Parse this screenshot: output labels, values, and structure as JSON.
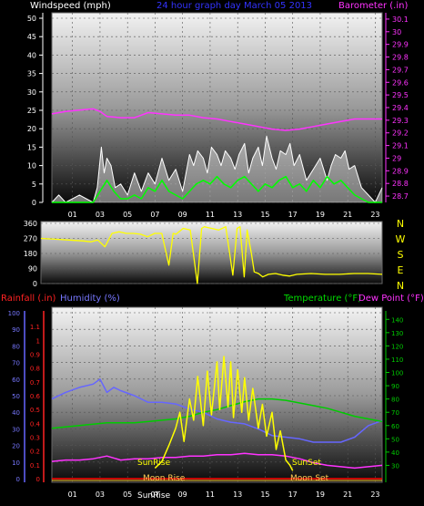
{
  "header": {
    "title": "24 hour graph day   March 05 2013",
    "left_label": "Windspeed (mph)",
    "right_label": "Barometer (.in)"
  },
  "labels": {
    "rainfall": "Rainfall (.in)",
    "humidity": "Humidity (%)",
    "temperature": "Temperature (°F)",
    "dew_point": "Dew Point (°F)",
    "sunrise": "SunRise",
    "sunset": "SunSet",
    "moonrise": "Moon Rise",
    "moonset": "Moon Set",
    "sunrise_axis": "SunRise"
  },
  "hour_ticks": [
    "01",
    "03",
    "05",
    "07",
    "09",
    "11",
    "13",
    "15",
    "17",
    "19",
    "21",
    "23"
  ],
  "direction_labels": [
    "N",
    "W",
    "S",
    "E",
    "N"
  ],
  "colors": {
    "windspeed": "#ffffff",
    "wind_avg": "#00ff00",
    "barometer": "#ff33ff",
    "direction": "#ffff00",
    "rainfall": "#ff0000",
    "humidity": "#6666ff",
    "temperature": "#00cc00",
    "dew_point": "#ff33ff",
    "solar": "#ffff00"
  },
  "chart_data": [
    {
      "type": "line",
      "panel": "wind-barometer",
      "ylabel": "Windspeed (mph)",
      "ylim": [
        0,
        50
      ],
      "left_ticks": [
        "0",
        "5",
        "10",
        "15",
        "20",
        "25",
        "30",
        "35",
        "40",
        "45",
        "50"
      ],
      "y2label": "Barometer (.in)",
      "y2lim": [
        28.65,
        30.15
      ],
      "right_ticks": [
        "28.7",
        "28.8",
        "28.9",
        "29",
        "29.1",
        "29.2",
        "29.3",
        "29.4",
        "29.5",
        "29.6",
        "29.7",
        "29.8",
        "29.9",
        "30",
        "30.1"
      ],
      "series": [
        {
          "name": "Barometer",
          "axis": "right",
          "x": [
            0,
            1,
            2,
            3,
            3.5,
            4,
            5,
            6,
            6.5,
            7,
            8,
            9,
            10,
            11,
            12,
            13,
            14,
            15,
            16,
            17,
            18,
            19,
            20,
            21,
            22,
            23,
            24
          ],
          "y": [
            29.35,
            29.37,
            29.38,
            29.39,
            29.37,
            29.33,
            29.32,
            29.32,
            29.34,
            29.36,
            29.35,
            29.34,
            29.34,
            29.32,
            29.31,
            29.29,
            29.27,
            29.25,
            29.23,
            29.22,
            29.23,
            29.25,
            29.27,
            29.29,
            29.31,
            29.31,
            29.31
          ]
        },
        {
          "name": "Wind Gust",
          "axis": "left",
          "x": [
            0,
            0.5,
            1,
            1.5,
            2,
            2.5,
            3,
            3.3,
            3.6,
            3.8,
            4,
            4.3,
            4.6,
            5,
            5.5,
            6,
            6.5,
            7,
            7.5,
            8,
            8.5,
            9,
            9.5,
            10,
            10.3,
            10.6,
            11,
            11.3,
            11.6,
            12,
            12.3,
            12.6,
            13,
            13.3,
            13.6,
            14,
            14.3,
            14.6,
            15,
            15.3,
            15.6,
            16,
            16.3,
            16.6,
            17,
            17.3,
            17.6,
            18,
            18.5,
            19,
            19.5,
            20,
            20.3,
            20.6,
            21,
            21.3,
            21.6,
            22,
            22.5,
            23,
            23.5,
            24
          ],
          "y": [
            0,
            2,
            0,
            1,
            2,
            1,
            0,
            4,
            15,
            8,
            12,
            10,
            4,
            5,
            2,
            8,
            3,
            8,
            5,
            12,
            6,
            9,
            3,
            13,
            10,
            14,
            12,
            8,
            15,
            13,
            10,
            14,
            12,
            9,
            13,
            16,
            8,
            12,
            15,
            10,
            18,
            12,
            9,
            14,
            13,
            16,
            10,
            13,
            6,
            9,
            12,
            6,
            10,
            13,
            12,
            14,
            9,
            10,
            4,
            2,
            0,
            4
          ]
        },
        {
          "name": "Wind Average",
          "axis": "left",
          "x": [
            0,
            1,
            2,
            3,
            3.5,
            4,
            4.5,
            5,
            5.5,
            6,
            6.5,
            7,
            7.5,
            8,
            8.5,
            9,
            9.5,
            10,
            10.5,
            11,
            11.5,
            12,
            12.5,
            13,
            13.5,
            14,
            14.5,
            15,
            15.5,
            16,
            16.5,
            17,
            17.5,
            18,
            18.5,
            19,
            19.5,
            20,
            20.5,
            21,
            21.5,
            22,
            22.5,
            23,
            24
          ],
          "y": [
            0,
            0,
            0,
            0,
            3,
            6,
            3,
            1,
            1,
            2,
            1,
            4,
            3,
            6,
            3,
            2,
            1,
            3,
            5,
            6,
            5,
            7,
            5,
            4,
            6,
            7,
            5,
            3,
            5,
            4,
            6,
            7,
            4,
            5,
            3,
            6,
            4,
            7,
            5,
            6,
            4,
            2,
            1,
            0,
            0
          ]
        }
      ]
    },
    {
      "type": "line",
      "panel": "wind-direction",
      "ylabel": "Wind Direction (degrees)",
      "ylim": [
        0,
        360
      ],
      "left_ticks": [
        "0",
        "90",
        "180",
        "270",
        "360"
      ],
      "series": [
        {
          "name": "Wind Direction",
          "x": [
            0,
            1,
            2,
            3,
            3.5,
            4,
            4.5,
            5,
            5.5,
            6,
            6.5,
            7,
            7.5,
            8,
            8.5,
            9,
            9.3,
            9.5,
            10,
            10.5,
            11,
            11.3,
            11.5,
            12,
            12.5,
            13,
            13.5,
            13.8,
            14,
            14.3,
            14.5,
            14.8,
            15,
            15.3,
            15.6,
            16,
            16.5,
            17,
            17.5,
            18,
            19,
            20,
            21,
            22,
            23,
            24
          ],
          "y": [
            270,
            265,
            260,
            255,
            250,
            260,
            220,
            300,
            310,
            300,
            300,
            295,
            280,
            300,
            300,
            110,
            300,
            295,
            330,
            320,
            0,
            330,
            340,
            330,
            320,
            340,
            50,
            330,
            340,
            40,
            320,
            180,
            70,
            60,
            40,
            55,
            60,
            50,
            45,
            55,
            60,
            55,
            55,
            60,
            60,
            55
          ]
        }
      ]
    },
    {
      "type": "line",
      "panel": "temp-humidity-rain",
      "ylabel": "Humidity (%)",
      "ylim": [
        0,
        100
      ],
      "humidity_ticks": [
        "0",
        "10",
        "20",
        "30",
        "40",
        "50",
        "60",
        "70",
        "80",
        "90",
        "100"
      ],
      "rain_ylim": [
        0,
        1.2
      ],
      "rain_ticks": [
        "0",
        "0.1",
        "0.2",
        "0.3",
        "0.4",
        "0.5",
        "0.6",
        "0.7",
        "0.8",
        "0.9",
        "1",
        "1.1"
      ],
      "y2label": "Temperature (°F)",
      "y2lim": [
        20,
        145
      ],
      "temp_ticks": [
        "30",
        "40",
        "50",
        "60",
        "70",
        "80",
        "90",
        "100",
        "110",
        "120",
        "130",
        "140"
      ],
      "series": [
        {
          "name": "Humidity",
          "axis": "humidity",
          "x": [
            0,
            1,
            2,
            3,
            3.5,
            4,
            4.5,
            5,
            6,
            7,
            8,
            9,
            10,
            11,
            12,
            13,
            14,
            15,
            16,
            17,
            18,
            19,
            20,
            21,
            22,
            23,
            24
          ],
          "y": [
            48,
            52,
            55,
            57,
            60,
            52,
            55,
            53,
            50,
            46,
            46,
            45,
            42,
            40,
            36,
            34,
            33,
            30,
            26,
            25,
            24,
            22,
            22,
            22,
            25,
            32,
            35
          ]
        },
        {
          "name": "Temperature",
          "axis": "temp",
          "x": [
            0,
            1,
            2,
            3,
            4,
            5,
            6,
            7,
            8,
            9,
            10,
            11,
            12,
            13,
            14,
            15,
            16,
            17,
            18,
            19,
            20,
            21,
            22,
            23,
            24
          ],
          "y": [
            58,
            59,
            60,
            61,
            62,
            62,
            62,
            63,
            64,
            65,
            67,
            70,
            72,
            75,
            78,
            80,
            80,
            79,
            77,
            75,
            73,
            70,
            67,
            65,
            63
          ]
        },
        {
          "name": "Dew Point",
          "axis": "temp",
          "x": [
            0,
            1,
            2,
            3,
            4,
            5,
            6,
            7,
            8,
            9,
            10,
            11,
            12,
            13,
            14,
            15,
            16,
            17,
            18,
            19,
            20,
            21,
            22,
            23,
            24
          ],
          "y": [
            33,
            34,
            34,
            35,
            37,
            34,
            35,
            35,
            36,
            36,
            37,
            37,
            38,
            38,
            39,
            38,
            38,
            37,
            35,
            32,
            30,
            29,
            28,
            29,
            30
          ]
        },
        {
          "name": "Solar",
          "axis": "temp",
          "x": [
            7.5,
            8,
            8.5,
            9,
            9.3,
            9.6,
            10,
            10.3,
            10.6,
            11,
            11.3,
            11.6,
            12,
            12.2,
            12.5,
            12.8,
            13,
            13.2,
            13.5,
            13.8,
            14,
            14.3,
            14.6,
            15,
            15.3,
            15.6,
            16,
            16.3,
            16.6,
            17,
            17.3,
            17.5
          ],
          "y": [
            28,
            33,
            45,
            58,
            70,
            48,
            80,
            64,
            97,
            60,
            101,
            68,
            108,
            72,
            112,
            74,
            108,
            66,
            102,
            70,
            96,
            64,
            88,
            58,
            76,
            52,
            70,
            42,
            56,
            34,
            30,
            26
          ]
        },
        {
          "name": "Rainfall",
          "axis": "rain",
          "x": [
            0,
            24
          ],
          "y": [
            0,
            0
          ]
        }
      ]
    }
  ]
}
